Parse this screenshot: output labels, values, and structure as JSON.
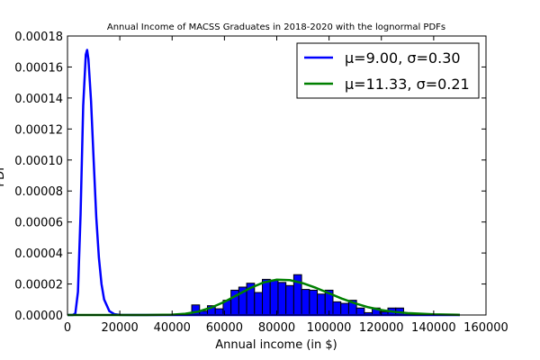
{
  "chart_data": {
    "type": "bar",
    "title": "Annual Income of MACSS Graduates in 2018-2020 with the lognormal PDFs",
    "xlabel": "Annual income (in $)",
    "ylabel": "PDF",
    "xlim": [
      0,
      160000
    ],
    "ylim": [
      0,
      0.00018
    ],
    "x_ticks": [
      0,
      20000,
      40000,
      60000,
      80000,
      100000,
      120000,
      140000,
      160000
    ],
    "x_tick_labels": [
      "0",
      "20000",
      "40000",
      "60000",
      "80000",
      "100000",
      "120000",
      "140000",
      "160000"
    ],
    "y_ticks": [
      0,
      2e-05,
      4e-05,
      6e-05,
      8e-05,
      0.0001,
      0.00012,
      0.00014,
      0.00016,
      0.00018
    ],
    "y_tick_labels": [
      "0.00000",
      "0.00002",
      "0.00004",
      "0.00006",
      "0.00008",
      "0.00010",
      "0.00012",
      "0.00014",
      "0.00016",
      "0.00018"
    ],
    "grid": false,
    "legend_position": "top-right",
    "histogram": {
      "color": "#0000ff",
      "edge_color": "#000000",
      "bins": [
        {
          "x0": 47500,
          "x1": 50500,
          "value": 6.5e-06
        },
        {
          "x0": 50500,
          "x1": 53500,
          "value": 2.5e-06
        },
        {
          "x0": 53500,
          "x1": 56500,
          "value": 6e-06
        },
        {
          "x0": 56500,
          "x1": 59500,
          "value": 4e-06
        },
        {
          "x0": 59500,
          "x1": 62500,
          "value": 9.5e-06
        },
        {
          "x0": 62500,
          "x1": 65500,
          "value": 1.6e-05
        },
        {
          "x0": 65500,
          "x1": 68500,
          "value": 1.8e-05
        },
        {
          "x0": 68500,
          "x1": 71500,
          "value": 2.05e-05
        },
        {
          "x0": 71500,
          "x1": 74500,
          "value": 1.45e-05
        },
        {
          "x0": 74500,
          "x1": 77500,
          "value": 2.3e-05
        },
        {
          "x0": 77500,
          "x1": 80500,
          "value": 2.25e-05
        },
        {
          "x0": 80500,
          "x1": 83500,
          "value": 2.1e-05
        },
        {
          "x0": 83500,
          "x1": 86500,
          "value": 1.9e-05
        },
        {
          "x0": 86500,
          "x1": 89500,
          "value": 2.6e-05
        },
        {
          "x0": 89500,
          "x1": 92500,
          "value": 1.65e-05
        },
        {
          "x0": 92500,
          "x1": 95500,
          "value": 1.6e-05
        },
        {
          "x0": 95500,
          "x1": 98500,
          "value": 1.35e-05
        },
        {
          "x0": 98500,
          "x1": 101500,
          "value": 1.6e-05
        },
        {
          "x0": 101500,
          "x1": 104500,
          "value": 8.5e-06
        },
        {
          "x0": 104500,
          "x1": 107500,
          "value": 7.5e-06
        },
        {
          "x0": 107500,
          "x1": 110500,
          "value": 9.5e-06
        },
        {
          "x0": 110500,
          "x1": 113500,
          "value": 4.5e-06
        },
        {
          "x0": 113500,
          "x1": 116500,
          "value": 1.5e-06
        },
        {
          "x0": 116500,
          "x1": 119500,
          "value": 4.5e-06
        },
        {
          "x0": 119500,
          "x1": 122500,
          "value": 2e-06
        },
        {
          "x0": 122500,
          "x1": 125500,
          "value": 4.5e-06
        },
        {
          "x0": 125500,
          "x1": 128500,
          "value": 4.5e-06
        }
      ]
    },
    "series": [
      {
        "name": "μ=9.00, σ=0.30",
        "type": "line",
        "color": "#0000ff",
        "x": [
          0,
          2000,
          3000,
          4000,
          5000,
          6000,
          7000,
          7500,
          8000,
          9000,
          10000,
          11000,
          12000,
          13000,
          14000,
          16000,
          18000,
          20000,
          25000,
          30000,
          40000,
          150000
        ],
        "y": [
          0,
          0,
          1e-06,
          1.5e-05,
          6.5e-05,
          0.000135,
          0.000168,
          0.000171,
          0.000165,
          0.000138,
          0.0001,
          6.3e-05,
          3.7e-05,
          2e-05,
          1e-05,
          2.5e-06,
          5e-07,
          1e-07,
          0,
          0,
          0,
          0
        ]
      },
      {
        "name": "μ=11.33, σ=0.21",
        "type": "line",
        "color": "#008000",
        "x": [
          0,
          30000,
          40000,
          45000,
          50000,
          55000,
          60000,
          65000,
          70000,
          75000,
          80000,
          85000,
          90000,
          95000,
          100000,
          105000,
          110000,
          115000,
          120000,
          125000,
          130000,
          140000,
          150000
        ],
        "y": [
          0,
          0,
          2e-07,
          8e-07,
          2.2e-06,
          4.8e-06,
          8.5e-06,
          1.3e-05,
          1.75e-05,
          2.1e-05,
          2.28e-05,
          2.25e-05,
          2.05e-05,
          1.75e-05,
          1.4e-05,
          1.05e-05,
          7.5e-06,
          5e-06,
          3.2e-06,
          2e-06,
          1.2e-06,
          4e-07,
          1e-07
        ]
      }
    ]
  }
}
